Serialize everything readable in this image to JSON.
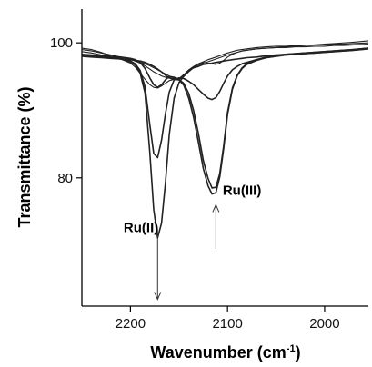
{
  "chart_data": {
    "type": "line",
    "title": "",
    "xlabel_pre": "Wavenumber (cm",
    "xlabel_sup": "-1",
    "xlabel_post": ")",
    "ylabel": "Transmittance (%)",
    "xlim": [
      2250,
      1955
    ],
    "ylim": [
      61,
      105
    ],
    "x_ticks": [
      2200,
      2100,
      2000
    ],
    "x_tick_labels": [
      "2200",
      "2100",
      "2000"
    ],
    "y_ticks": [
      80,
      100
    ],
    "y_tick_labels": [
      "80",
      "100"
    ],
    "grid": false,
    "legend": "none",
    "x": [
      2250,
      2240,
      2230,
      2220,
      2210,
      2200,
      2195,
      2190,
      2185,
      2180,
      2176,
      2172,
      2168,
      2164,
      2160,
      2155,
      2150,
      2145,
      2140,
      2135,
      2130,
      2125,
      2120,
      2116,
      2112,
      2108,
      2104,
      2100,
      2095,
      2090,
      2085,
      2080,
      2070,
      2060,
      2050,
      2040,
      2030,
      2020,
      2010,
      2000,
      1990,
      1980,
      1970,
      1955
    ],
    "series": [
      {
        "values": [
          98.1,
          98.0,
          97.9,
          97.8,
          97.6,
          97.2,
          96.7,
          95.5,
          92.6,
          83.8,
          75.3,
          71.1,
          73.3,
          79.1,
          86.4,
          91.8,
          94.1,
          95.1,
          95.9,
          96.3,
          96.5,
          96.8,
          96.9,
          97.0,
          97.1,
          97.2,
          97.3,
          97.4,
          97.5,
          97.6,
          97.7,
          97.8,
          97.9,
          98.1,
          98.2,
          98.3,
          98.4,
          98.5,
          98.6,
          98.7,
          98.8,
          98.9,
          99.0,
          99.2
        ]
      },
      {
        "values": [
          98.2,
          98.1,
          98.0,
          97.9,
          97.7,
          97.3,
          96.9,
          95.9,
          93.5,
          87.9,
          83.6,
          83.0,
          85.6,
          89.4,
          92.7,
          94.5,
          94.8,
          94.7,
          94.3,
          93.8,
          93.1,
          92.4,
          91.8,
          91.6,
          91.9,
          92.8,
          94.0,
          95.1,
          96.0,
          96.5,
          96.9,
          97.1,
          97.5,
          97.8,
          98.0,
          98.2,
          98.3,
          98.4,
          98.5,
          98.6,
          98.7,
          98.8,
          98.9,
          99.1
        ]
      },
      {
        "values": [
          98.3,
          98.2,
          98.1,
          98.0,
          97.9,
          97.7,
          97.5,
          97.1,
          96.2,
          94.8,
          93.8,
          93.4,
          93.8,
          94.5,
          95.0,
          94.9,
          94.6,
          94.0,
          92.5,
          90.0,
          86.6,
          82.6,
          79.9,
          78.5,
          78.6,
          80.6,
          84.7,
          89.7,
          93.3,
          95.2,
          96.3,
          96.9,
          97.5,
          97.9,
          98.1,
          98.3,
          98.4,
          98.5,
          98.6,
          98.7,
          98.8,
          98.9,
          99.0,
          99.2
        ]
      },
      {
        "values": [
          98.0,
          97.9,
          97.8,
          97.7,
          97.6,
          97.5,
          97.4,
          97.3,
          97.1,
          96.8,
          96.5,
          96.1,
          95.7,
          95.2,
          94.8,
          94.6,
          94.5,
          93.7,
          91.8,
          89.0,
          85.3,
          81.4,
          78.8,
          77.6,
          77.8,
          80.1,
          84.3,
          89.4,
          93.1,
          95.1,
          96.2,
          96.8,
          97.4,
          97.8,
          98.0,
          98.2,
          98.3,
          98.4,
          98.5,
          98.6,
          98.7,
          98.8,
          98.9,
          99.1
        ]
      },
      {
        "values": [
          99.2,
          99.0,
          98.6,
          98.0,
          97.6,
          97.0,
          96.4,
          95.5,
          94.6,
          93.8,
          93.4,
          93.3,
          93.6,
          94.0,
          94.4,
          94.6,
          94.7,
          95.2,
          95.8,
          96.4,
          96.9,
          97.1,
          97.0,
          96.9,
          96.8,
          97.0,
          97.4,
          97.9,
          98.3,
          98.6,
          98.8,
          98.9,
          99.1,
          99.2,
          99.3,
          99.3,
          99.4,
          99.4,
          99.5,
          99.5,
          99.6,
          99.6,
          99.7,
          99.8
        ]
      },
      {
        "values": [
          99.0,
          98.8,
          98.5,
          98.2,
          97.9,
          97.6,
          97.3,
          97.0,
          96.6,
          96.1,
          95.7,
          95.4,
          95.1,
          94.9,
          94.8,
          94.7,
          94.7,
          95.3,
          96.0,
          96.5,
          96.9,
          97.2,
          97.5,
          97.7,
          97.9,
          98.1,
          98.3,
          98.5,
          98.7,
          98.9,
          99.0,
          99.1,
          99.3,
          99.4,
          99.5,
          99.5,
          99.6,
          99.6,
          99.7,
          99.7,
          99.8,
          99.8,
          99.9,
          100.0
        ]
      },
      {
        "values": [
          98.7,
          98.5,
          98.2,
          97.9,
          97.7,
          97.5,
          97.3,
          97.1,
          96.9,
          96.6,
          96.3,
          96.0,
          95.7,
          95.4,
          95.1,
          94.8,
          94.6,
          95.0,
          95.7,
          96.3,
          96.7,
          97.0,
          97.2,
          97.4,
          97.6,
          97.8,
          98.0,
          98.2,
          98.4,
          98.6,
          98.8,
          98.9,
          99.1,
          99.2,
          99.3,
          99.4,
          99.5,
          99.6,
          99.7,
          99.8,
          99.9,
          100.0,
          100.1,
          100.3
        ]
      }
    ],
    "annotations": [
      {
        "text": "Ru(II)",
        "x": 2207,
        "y": 72.0,
        "arrow": "down",
        "arrow_x": 2172,
        "arrow_from": 72.5,
        "arrow_to": 62.0
      },
      {
        "text": "Ru(III)",
        "x": 2105,
        "y": 77.5,
        "arrow": "up",
        "arrow_x": 2112,
        "arrow_from": 69.5,
        "arrow_to": 76.0
      }
    ],
    "colors": {
      "line": "#222222",
      "axis": "#000000",
      "arrow": "#333333"
    }
  }
}
